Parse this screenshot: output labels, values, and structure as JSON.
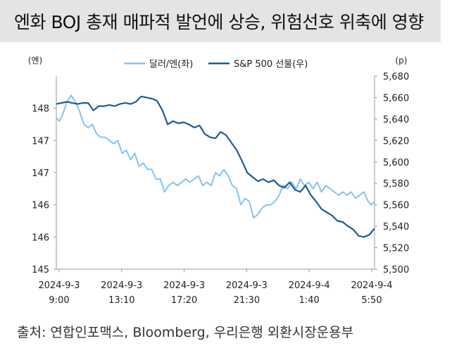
{
  "title": "엔화 BOJ 총재 매파적 발언에 상승, 위험선호 위축에 영향",
  "source": "출처: 연합인포맥스, Bloomberg, 우리은행 외환시장운용부",
  "chart_data": {
    "type": "line",
    "title": "엔화 BOJ 총재 매파적 발언에 상승, 위험선호 위축에 영향",
    "left_axis": {
      "unit_label": "(엔)",
      "min": 145,
      "max": 148,
      "step": 0.5,
      "tick_labels": [
        "145",
        "146",
        "146",
        "147",
        "147",
        "148"
      ]
    },
    "right_axis": {
      "unit_label": "(p)",
      "min": 5500,
      "max": 5680,
      "step": 20,
      "tick_labels": [
        "5,500",
        "5,520",
        "5,540",
        "5,560",
        "5,580",
        "5,600",
        "5,620",
        "5,640",
        "5,660",
        "5,680"
      ]
    },
    "x_labels": [
      {
        "date": "2024-9-3",
        "time": "9:00"
      },
      {
        "date": "2024-9-3",
        "time": "13:10"
      },
      {
        "date": "2024-9-3",
        "time": "17:20"
      },
      {
        "date": "2024-9-3",
        "time": "21:30"
      },
      {
        "date": "2024-9-4",
        "time": "1:40"
      },
      {
        "date": "2024-9-4",
        "time": "5:50"
      }
    ],
    "x_range": [
      0,
      30
    ],
    "series": [
      {
        "name": "달러/엔(좌)",
        "axis": "left",
        "color": "#87c3ec",
        "x": [
          0,
          0.3,
          0.6,
          1,
          1.4,
          1.8,
          2.2,
          2.6,
          3.0,
          3.4,
          3.8,
          4.2,
          4.6,
          5.0,
          5.4,
          5.8,
          6.2,
          6.6,
          7.0,
          7.4,
          7.8,
          8.2,
          8.6,
          9.0,
          9.4,
          9.8,
          10.2,
          10.6,
          11.0,
          11.4,
          11.8,
          12.2,
          12.6,
          13.0,
          13.4,
          13.8,
          14.2,
          14.6,
          15.0,
          15.4,
          15.8,
          16.2,
          16.6,
          17.0,
          17.4,
          17.8,
          18.2,
          18.6,
          19.0,
          19.4,
          19.8,
          20.2,
          20.6,
          21.0,
          21.4,
          21.8,
          22.2,
          22.6,
          23.0,
          23.4,
          23.8,
          24.2,
          24.6,
          25.0,
          25.4,
          25.8,
          26.2,
          26.6,
          27.0,
          27.4,
          27.8,
          28.2,
          28.6,
          29.0,
          29.4,
          29.7,
          30
        ],
        "values": [
          147.35,
          147.3,
          147.4,
          147.6,
          147.7,
          147.6,
          147.45,
          147.25,
          147.2,
          147.25,
          147.1,
          147.05,
          147.05,
          147.0,
          146.95,
          147.0,
          146.8,
          146.85,
          146.7,
          146.8,
          146.6,
          146.65,
          146.55,
          146.55,
          146.4,
          146.4,
          146.2,
          146.3,
          146.35,
          146.3,
          146.35,
          146.4,
          146.35,
          146.4,
          146.45,
          146.3,
          146.35,
          146.3,
          146.5,
          146.45,
          146.55,
          146.45,
          146.3,
          146.25,
          146.0,
          146.1,
          146.05,
          145.8,
          145.85,
          145.95,
          146.0,
          146.0,
          146.05,
          146.15,
          146.3,
          146.25,
          146.35,
          146.25,
          146.4,
          146.3,
          146.35,
          146.25,
          146.35,
          146.2,
          146.3,
          146.25,
          146.2,
          146.15,
          146.2,
          146.15,
          146.2,
          146.1,
          146.15,
          146.2,
          146.05,
          146.0,
          146.05
        ]
      },
      {
        "name": "S&P 500 선물(우)",
        "axis": "right",
        "color": "#1f5b92",
        "x": [
          0,
          0.5,
          1,
          1.5,
          2,
          2.5,
          3,
          3.5,
          4,
          4.5,
          5,
          5.5,
          6,
          6.5,
          7,
          7.5,
          8,
          8.5,
          9,
          9.5,
          10,
          10.5,
          11,
          11.5,
          12,
          12.5,
          13,
          13.5,
          14,
          14.5,
          15,
          15.5,
          16,
          16.5,
          17,
          17.5,
          18,
          18.5,
          19,
          19.5,
          20,
          20.5,
          21,
          21.5,
          22,
          22.5,
          23,
          23.5,
          24,
          24.5,
          25,
          25.5,
          26,
          26.5,
          27,
          27.5,
          28,
          28.5,
          29,
          29.5,
          30
        ],
        "values": [
          5654,
          5655,
          5656,
          5655,
          5654,
          5655,
          5655,
          5648,
          5652,
          5652,
          5653,
          5652,
          5654,
          5655,
          5654,
          5656,
          5661,
          5660,
          5659,
          5657,
          5648,
          5635,
          5638,
          5636,
          5637,
          5635,
          5632,
          5634,
          5626,
          5623,
          5622,
          5628,
          5625,
          5618,
          5611,
          5601,
          5590,
          5586,
          5582,
          5584,
          5581,
          5583,
          5578,
          5576,
          5581,
          5574,
          5572,
          5578,
          5569,
          5563,
          5556,
          5553,
          5550,
          5545,
          5544,
          5540,
          5537,
          5531,
          5530,
          5532,
          5538
        ]
      }
    ]
  }
}
